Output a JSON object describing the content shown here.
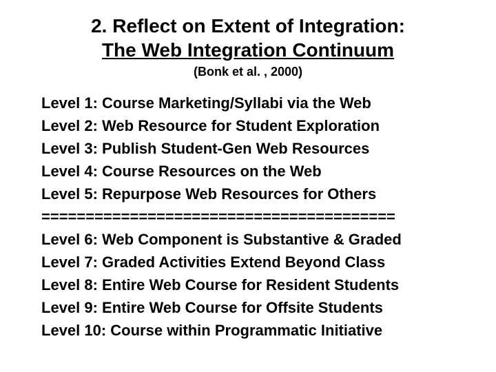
{
  "title": {
    "line1": "2. Reflect on Extent of Integration:",
    "line2": "The Web Integration Continuum",
    "citation": "(Bonk et al. , 2000)"
  },
  "levels_upper": [
    "Level 1: Course Marketing/Syllabi via the Web",
    "Level 2: Web Resource for Student Exploration",
    "Level 3: Publish Student-Gen Web Resources",
    "Level 4: Course Resources on the Web",
    "Level 5: Repurpose Web Resources for Others"
  ],
  "divider": "========================================",
  "levels_lower": [
    "Level 6: Web Component is Substantive & Graded",
    "Level 7: Graded Activities Extend Beyond Class",
    "Level 8: Entire Web Course for Resident Students",
    "Level 9: Entire Web Course for Offsite Students",
    "Level 10: Course within Programmatic Initiative"
  ],
  "styling": {
    "background_color": "#ffffff",
    "text_color": "#000000",
    "title_fontsize": 28,
    "citation_fontsize": 18,
    "body_fontsize": 22,
    "font_family": "Arial",
    "font_weight": "bold",
    "line_height": 1.5,
    "title_underline": true
  }
}
